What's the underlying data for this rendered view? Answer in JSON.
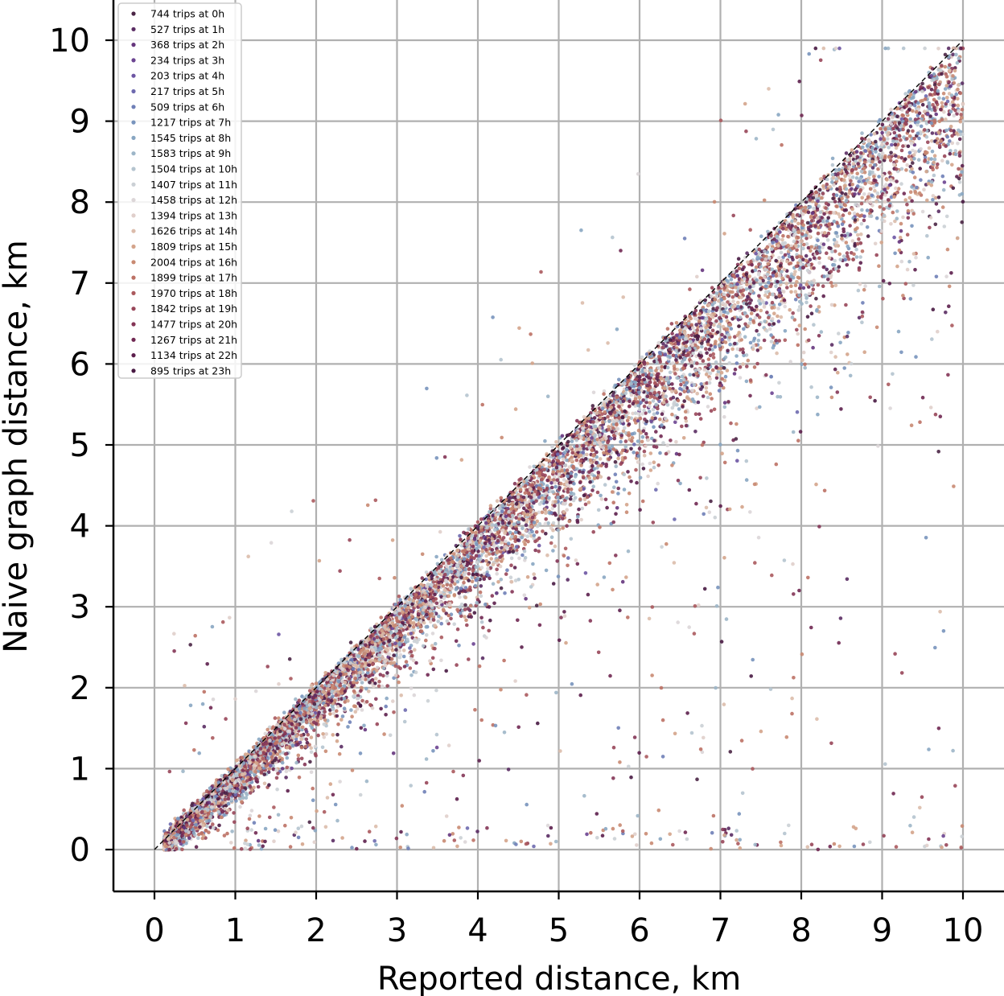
{
  "chart_data": {
    "type": "scatter",
    "xlabel": "Reported distance, km",
    "ylabel": "Naive graph distance, km",
    "xlim": [
      -0.5,
      10.5
    ],
    "ylim": [
      -0.5,
      10.4
    ],
    "x_ticks": [
      "0",
      "1",
      "2",
      "3",
      "4",
      "5",
      "6",
      "7",
      "8",
      "9",
      "10"
    ],
    "y_ticks": [
      "0",
      "1",
      "2",
      "3",
      "4",
      "5",
      "6",
      "7",
      "8",
      "9",
      "10"
    ],
    "grid": true,
    "reference_line": {
      "from": [
        0,
        0
      ],
      "to": [
        10,
        10
      ],
      "style": "dashed",
      "color": "#000000"
    },
    "legend_position": "top-left",
    "series": [
      {
        "name": "744 trips at 0h",
        "hour": 0,
        "count": 744,
        "color": "#4a2545"
      },
      {
        "name": "527 trips at 1h",
        "hour": 1,
        "count": 527,
        "color": "#5a2c63"
      },
      {
        "name": "368 trips at 2h",
        "hour": 2,
        "count": 368,
        "color": "#65357d"
      },
      {
        "name": "234 trips at 3h",
        "hour": 3,
        "count": 234,
        "color": "#6b4491"
      },
      {
        "name": "203 trips at 4h",
        "hour": 4,
        "count": 203,
        "color": "#6d55a3"
      },
      {
        "name": "217 trips at 5h",
        "hour": 5,
        "count": 217,
        "color": "#6e6aaf"
      },
      {
        "name": "509 trips at 6h",
        "hour": 6,
        "count": 509,
        "color": "#6f7fb7"
      },
      {
        "name": "1217 trips at 7h",
        "hour": 7,
        "count": 1217,
        "color": "#7894bd"
      },
      {
        "name": "1545 trips at 8h",
        "hour": 8,
        "count": 1545,
        "color": "#88a6c2"
      },
      {
        "name": "1583 trips at 9h",
        "hour": 9,
        "count": 1583,
        "color": "#9db6c8"
      },
      {
        "name": "1504 trips at 10h",
        "hour": 10,
        "count": 1504,
        "color": "#b5c4cf"
      },
      {
        "name": "1407 trips at 11h",
        "hour": 11,
        "count": 1407,
        "color": "#cbd0d5"
      },
      {
        "name": "1458 trips at 12h",
        "hour": 12,
        "count": 1458,
        "color": "#dcd6d8"
      },
      {
        "name": "1394 trips at 13h",
        "hour": 13,
        "count": 1394,
        "color": "#e0cfcb"
      },
      {
        "name": "1626 trips at 14h",
        "hour": 14,
        "count": 1626,
        "color": "#dcbcab"
      },
      {
        "name": "1809 trips at 15h",
        "hour": 15,
        "count": 1809,
        "color": "#d4a48b"
      },
      {
        "name": "2004 trips at 16h",
        "hour": 16,
        "count": 2004,
        "color": "#c98a72"
      },
      {
        "name": "1899 trips at 17h",
        "hour": 17,
        "count": 1899,
        "color": "#bc7165"
      },
      {
        "name": "1970 trips at 18h",
        "hour": 18,
        "count": 1970,
        "color": "#ab5a5e"
      },
      {
        "name": "1842 trips at 19h",
        "hour": 19,
        "count": 1842,
        "color": "#984659"
      },
      {
        "name": "1477 trips at 20h",
        "hour": 20,
        "count": 1477,
        "color": "#843556"
      },
      {
        "name": "1267 trips at 21h",
        "hour": 21,
        "count": 1267,
        "color": "#702852"
      },
      {
        "name": "1134 trips at 22h",
        "hour": 22,
        "count": 1134,
        "color": "#5c1f4c"
      },
      {
        "name": "895 trips at 23h",
        "hour": 23,
        "count": 895,
        "color": "#481a43"
      }
    ]
  }
}
